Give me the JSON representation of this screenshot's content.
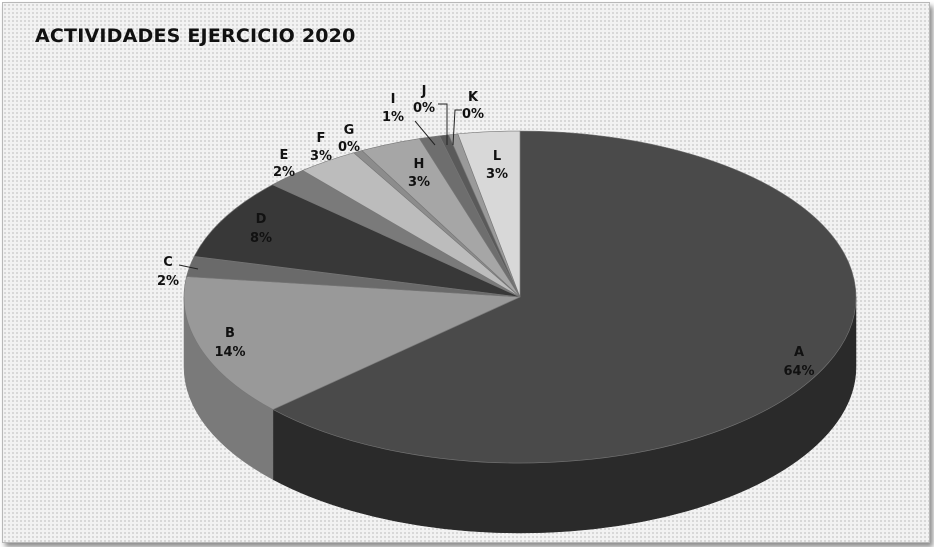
{
  "title": "ACTIVIDADES EJERCICIO 2020",
  "chart_data": {
    "type": "pie",
    "title": "ACTIVIDADES EJERCICIO 2020",
    "style": "3d",
    "categories": [
      "A",
      "B",
      "C",
      "D",
      "E",
      "F",
      "G",
      "H",
      "I",
      "J",
      "K",
      "L"
    ],
    "values": [
      64,
      14,
      2,
      8,
      2,
      3,
      0,
      3,
      1,
      0,
      0,
      3
    ],
    "labels": [
      "64%",
      "14%",
      "2%",
      "8%",
      "2%",
      "3%",
      "0%",
      "3%",
      "1%",
      "0%",
      "0%",
      "3%"
    ],
    "colors": [
      "#4a4a4a",
      "#999999",
      "#6a6a6a",
      "#383838",
      "#7a7a7a",
      "#bcbcbc",
      "#8c8c8c",
      "#a6a6a6",
      "#6e6e6e",
      "#5a5a5a",
      "#9a9a9a",
      "#d8d8d8"
    ],
    "side_colors": [
      "#2a2a2a",
      "#7a7a7a",
      "#555555",
      "#262626",
      "#5e5e5e",
      "#9a9a9a",
      "#707070",
      "#888888",
      "#565656",
      "#444444",
      "#7c7c7c",
      "#b4b4b4"
    ]
  }
}
